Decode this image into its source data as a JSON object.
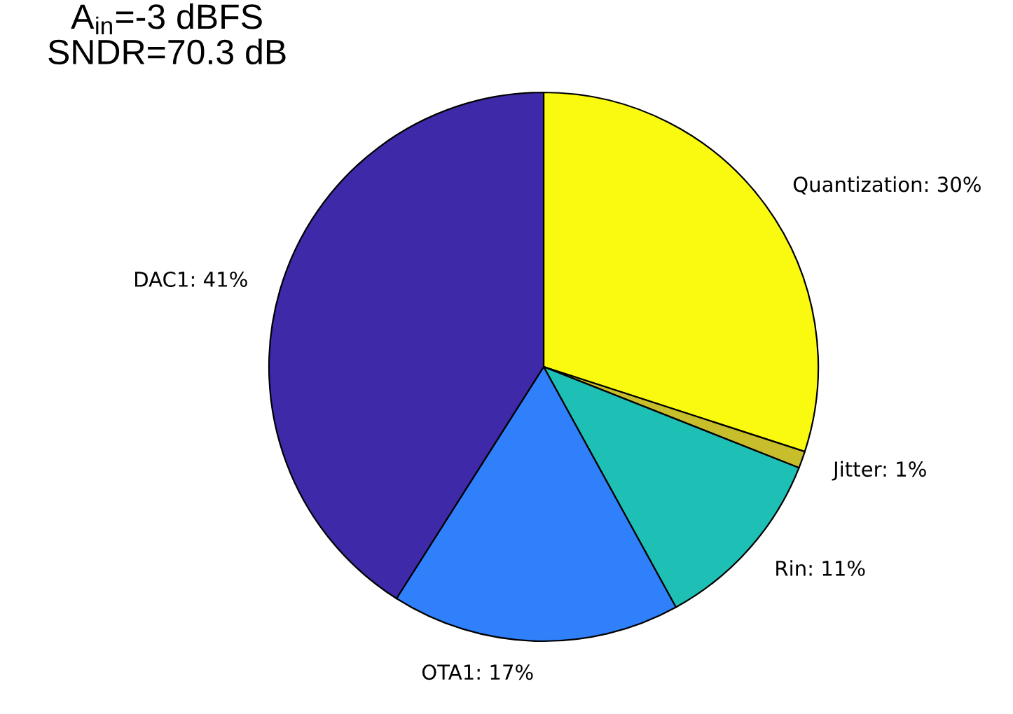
{
  "chart_data": {
    "type": "pie",
    "title": "A$_{in}$=-3 dBFS\nSNDR=70.3 dB",
    "categories": [
      "Quantization: 30%",
      "Jitter: 1%",
      "Rin: 11%",
      "OTA1: 17%",
      "DAC1: 41%"
    ],
    "values": [
      30,
      1,
      11,
      17,
      41
    ],
    "colors": [
      "#f9fa0f",
      "#c8bd2a",
      "#1ebfb4",
      "#2f80fa",
      "#3e2aa8"
    ]
  }
}
